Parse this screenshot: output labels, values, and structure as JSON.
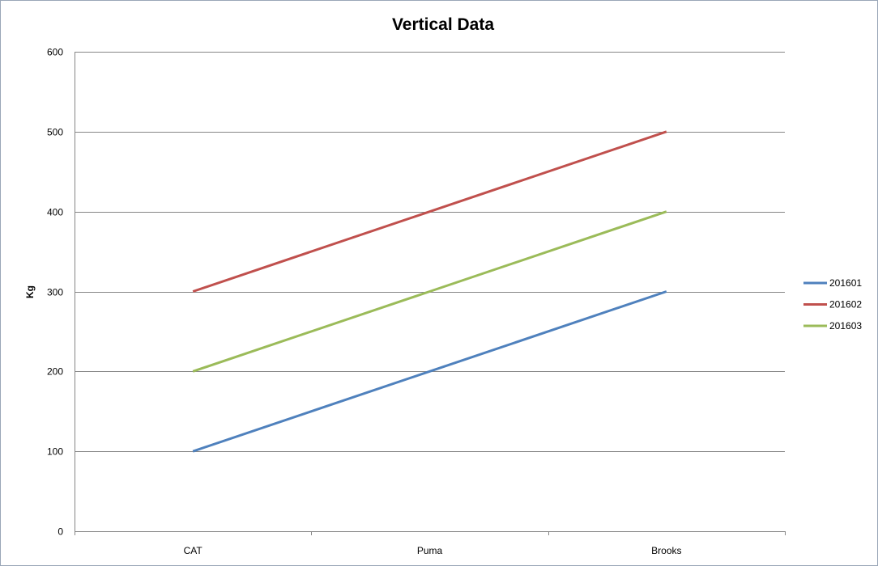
{
  "chart_data": {
    "type": "line",
    "title": "Vertical Data",
    "xlabel": "",
    "ylabel": "Kg",
    "categories": [
      "CAT",
      "Puma",
      "Brooks"
    ],
    "ylim": [
      0,
      600
    ],
    "yticks": [
      0,
      100,
      200,
      300,
      400,
      500,
      600
    ],
    "grid": true,
    "legend_position": "right",
    "series": [
      {
        "name": "201601",
        "color": "#4f81bd",
        "values": [
          100,
          200,
          300
        ]
      },
      {
        "name": "201602",
        "color": "#c0504d",
        "values": [
          300,
          400,
          500
        ]
      },
      {
        "name": "201603",
        "color": "#9bbb59",
        "values": [
          200,
          300,
          400
        ]
      }
    ]
  }
}
